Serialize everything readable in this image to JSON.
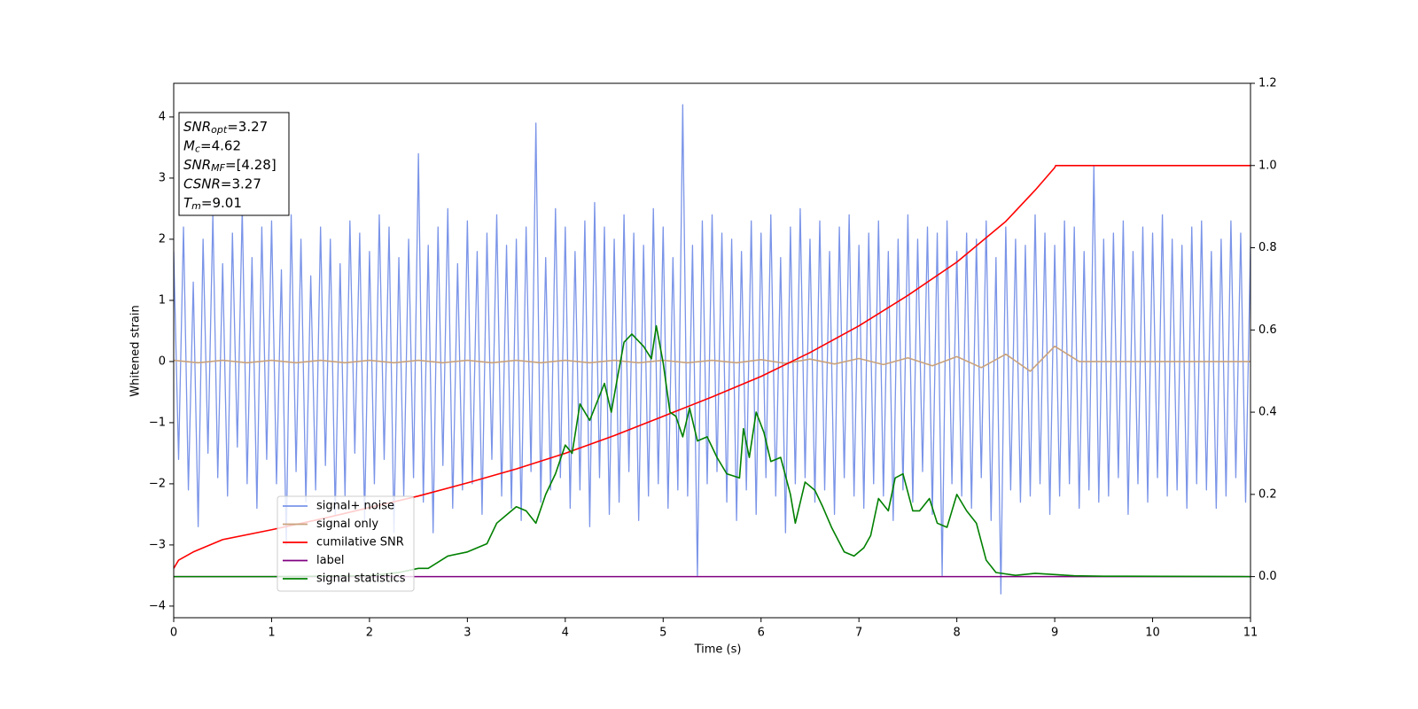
{
  "chart_data": {
    "type": "line",
    "xlabel": "Time (s)",
    "ylabel": "Whitened strain",
    "xlim": [
      0,
      11
    ],
    "xticks": [
      0,
      1,
      2,
      3,
      4,
      5,
      6,
      7,
      8,
      9,
      10,
      11
    ],
    "ylim": [
      -4.19,
      4.55
    ],
    "yticks": [
      {
        "value": -4,
        "label": "−4"
      },
      {
        "value": -3,
        "label": "−3"
      },
      {
        "value": -2,
        "label": "−2"
      },
      {
        "value": -1,
        "label": "−1"
      },
      0,
      1,
      2,
      3,
      4
    ],
    "y2lim": [
      -0.1,
      1.2
    ],
    "y2ticks": [
      {
        "value": 0,
        "label": "0.0"
      },
      0.2,
      0.4,
      0.6,
      0.8,
      {
        "value": 1,
        "label": "1.0"
      },
      1.2
    ],
    "annotation": [
      {
        "symbol": "SNR",
        "sub": "opt",
        "text": "=3.27"
      },
      {
        "symbol": "M",
        "sub": "c",
        "text": "=4.62"
      },
      {
        "symbol": "SNR",
        "sub": "MF",
        "text": "=[4.28]"
      },
      {
        "symbol": "CSNR",
        "text": "=3.27"
      },
      {
        "symbol": "T",
        "sub": "m",
        "text": "=9.01"
      }
    ],
    "series": [
      {
        "name": "signal+ noise",
        "color": "#7a94e8",
        "x": [
          0,
          0.05,
          0.1,
          0.15,
          0.2,
          0.25,
          0.3,
          0.35,
          0.4,
          0.45,
          0.5,
          0.55,
          0.6,
          0.65,
          0.7,
          0.75,
          0.8,
          0.85,
          0.9,
          0.95,
          1,
          1.05,
          1.1,
          1.15,
          1.2,
          1.25,
          1.3,
          1.35,
          1.4,
          1.45,
          1.5,
          1.55,
          1.6,
          1.65,
          1.7,
          1.75,
          1.8,
          1.85,
          1.9,
          1.95,
          2,
          2.05,
          2.1,
          2.15,
          2.2,
          2.25,
          2.3,
          2.35,
          2.4,
          2.45,
          2.5,
          2.55,
          2.6,
          2.65,
          2.7,
          2.75,
          2.8,
          2.85,
          2.9,
          2.95,
          3,
          3.05,
          3.1,
          3.15,
          3.2,
          3.25,
          3.3,
          3.35,
          3.4,
          3.45,
          3.5,
          3.55,
          3.6,
          3.65,
          3.7,
          3.75,
          3.8,
          3.85,
          3.9,
          3.95,
          4,
          4.05,
          4.1,
          4.15,
          4.2,
          4.25,
          4.3,
          4.35,
          4.4,
          4.45,
          4.5,
          4.55,
          4.6,
          4.65,
          4.7,
          4.75,
          4.8,
          4.85,
          4.9,
          4.95,
          5,
          5.05,
          5.1,
          5.15,
          5.2,
          5.25,
          5.3,
          5.35,
          5.4,
          5.45,
          5.5,
          5.55,
          5.6,
          5.65,
          5.7,
          5.75,
          5.8,
          5.85,
          5.9,
          5.95,
          6,
          6.05,
          6.1,
          6.15,
          6.2,
          6.25,
          6.3,
          6.35,
          6.4,
          6.45,
          6.5,
          6.55,
          6.6,
          6.65,
          6.7,
          6.75,
          6.8,
          6.85,
          6.9,
          6.95,
          7,
          7.05,
          7.1,
          7.15,
          7.2,
          7.25,
          7.3,
          7.35,
          7.4,
          7.45,
          7.5,
          7.55,
          7.6,
          7.65,
          7.7,
          7.75,
          7.8,
          7.85,
          7.9,
          7.95,
          8,
          8.05,
          8.1,
          8.15,
          8.2,
          8.25,
          8.3,
          8.35,
          8.4,
          8.45,
          8.5,
          8.55,
          8.6,
          8.65,
          8.7,
          8.75,
          8.8,
          8.85,
          8.9,
          8.95,
          9,
          9.05,
          9.1,
          9.15,
          9.2,
          9.25,
          9.3,
          9.35,
          9.4,
          9.45,
          9.5,
          9.55,
          9.6,
          9.65,
          9.7,
          9.75,
          9.8,
          9.85,
          9.9,
          9.95,
          10,
          10.05,
          10.1,
          10.15,
          10.2,
          10.25,
          10.3,
          10.35,
          10.4,
          10.45,
          10.5,
          10.55,
          10.6,
          10.65,
          10.7,
          10.75,
          10.8,
          10.85,
          10.9,
          10.95,
          11
        ],
        "values": [
          1.8,
          -1.6,
          2.2,
          -2.1,
          1.3,
          -2.7,
          2.0,
          -1.5,
          2.4,
          -1.9,
          1.6,
          -2.2,
          2.1,
          -1.4,
          2.5,
          -2.0,
          1.7,
          -2.4,
          2.2,
          -1.6,
          2.3,
          -2.0,
          1.5,
          -3.0,
          2.4,
          -1.8,
          2.0,
          -2.3,
          1.4,
          -2.1,
          2.2,
          -1.7,
          2.0,
          -2.5,
          1.6,
          -2.2,
          2.3,
          -1.5,
          2.1,
          -2.6,
          1.8,
          -2.0,
          2.4,
          -1.6,
          2.2,
          -2.8,
          1.7,
          -2.2,
          2.0,
          -1.9,
          3.4,
          -2.3,
          1.9,
          -2.8,
          2.2,
          -1.7,
          2.5,
          -2.4,
          1.6,
          -2.1,
          2.3,
          -2.0,
          1.8,
          -2.5,
          2.1,
          -1.6,
          2.4,
          -2.2,
          1.9,
          -2.4,
          2.0,
          -2.6,
          2.2,
          -1.8,
          3.9,
          -2.3,
          1.7,
          -2.1,
          2.5,
          -1.9,
          2.2,
          -2.4,
          1.8,
          -2.1,
          2.3,
          -2.7,
          2.6,
          -1.9,
          2.2,
          -2.5,
          2.0,
          -2.3,
          2.4,
          -1.8,
          2.1,
          -2.6,
          1.9,
          -2.2,
          2.5,
          -2.0,
          2.2,
          -2.4,
          1.7,
          -2.1,
          4.2,
          -2.2,
          1.9,
          -3.5,
          2.3,
          -2.0,
          2.4,
          -1.8,
          2.1,
          -2.3,
          2.0,
          -2.6,
          1.8,
          -2.1,
          2.3,
          -2.5,
          2.1,
          -1.9,
          2.4,
          -2.2,
          1.7,
          -2.8,
          2.2,
          -2.0,
          2.5,
          -1.9,
          2.0,
          -2.3,
          2.3,
          -2.1,
          1.8,
          -2.5,
          2.2,
          -1.9,
          2.4,
          -2.2,
          1.9,
          -2.4,
          2.1,
          -2.0,
          2.3,
          -2.2,
          1.8,
          -2.6,
          2.0,
          -2.1,
          2.4,
          -2.3,
          2.0,
          -1.8,
          2.2,
          -2.5,
          2.1,
          -3.5,
          2.3,
          -2.0,
          1.8,
          -2.2,
          2.1,
          -2.4,
          2.0,
          -1.9,
          2.3,
          -2.6,
          1.7,
          -3.8,
          2.2,
          -2.1,
          2.0,
          -2.3,
          1.9,
          -2.2,
          2.4,
          -2.0,
          2.1,
          -2.5,
          1.9,
          -2.2,
          2.3,
          -2.0,
          2.2,
          -2.4,
          1.8,
          -2.1,
          3.2,
          -2.3,
          2.0,
          -2.2,
          2.1,
          -1.9,
          2.3,
          -2.5,
          1.8,
          -2.0,
          2.2,
          -2.3,
          2.1,
          -1.9,
          2.4,
          -2.2,
          2.0,
          -2.1,
          1.9,
          -2.4,
          2.2,
          -2.0,
          2.3,
          -2.1,
          1.8,
          -2.4,
          2.0,
          -2.2,
          2.3,
          -1.9,
          2.1,
          -2.3,
          1.9
        ]
      },
      {
        "name": "signal only",
        "color": "#c9a27c",
        "x": [
          0,
          0.25,
          0.5,
          0.75,
          1,
          1.25,
          1.5,
          1.75,
          2,
          2.25,
          2.5,
          2.75,
          3,
          3.25,
          3.5,
          3.75,
          4,
          4.25,
          4.5,
          4.75,
          5,
          5.25,
          5.5,
          5.75,
          6,
          6.25,
          6.5,
          6.75,
          7,
          7.25,
          7.5,
          7.75,
          8,
          8.25,
          8.5,
          8.75,
          9,
          9.25,
          9.5,
          9.75,
          10,
          10.25,
          10.5,
          10.75,
          11
        ],
        "values": [
          0.02,
          -0.02,
          0.02,
          -0.02,
          0.02,
          -0.02,
          0.02,
          -0.02,
          0.02,
          -0.02,
          0.02,
          -0.02,
          0.02,
          -0.02,
          0.02,
          -0.02,
          0.02,
          -0.02,
          0.02,
          -0.02,
          0.02,
          -0.02,
          0.02,
          -0.02,
          0.03,
          -0.03,
          0.04,
          -0.04,
          0.05,
          -0.05,
          0.06,
          -0.07,
          0.08,
          -0.1,
          0.12,
          -0.16,
          0.25,
          0,
          0,
          0,
          0,
          0,
          0,
          0,
          0
        ]
      },
      {
        "name": "cumilative SNR",
        "color": "#ff0000",
        "axis": "y2",
        "x": [
          0,
          0.05,
          0.2,
          0.5,
          1,
          1.5,
          2,
          2.5,
          3,
          3.5,
          4,
          4.5,
          5,
          5.5,
          6,
          6.5,
          7,
          7.5,
          8,
          8.5,
          8.8,
          9,
          9.01,
          11
        ],
        "values": [
          0.02,
          0.04,
          0.06,
          0.09,
          0.114,
          0.14,
          0.168,
          0.196,
          0.228,
          0.262,
          0.3,
          0.343,
          0.39,
          0.437,
          0.487,
          0.545,
          0.61,
          0.684,
          0.765,
          0.864,
          0.94,
          0.995,
          1.0,
          1.0
        ]
      },
      {
        "name": "label",
        "color": "#800080",
        "axis": "y2",
        "x": [
          0,
          11
        ],
        "values": [
          0,
          0
        ]
      },
      {
        "name": "signal statistics",
        "color": "#008000",
        "axis": "y2",
        "x": [
          0,
          1,
          2,
          2.3,
          2.5,
          2.6,
          2.8,
          3.0,
          3.2,
          3.3,
          3.4,
          3.5,
          3.6,
          3.7,
          3.8,
          3.9,
          4.0,
          4.07,
          4.15,
          4.25,
          4.4,
          4.47,
          4.53,
          4.6,
          4.68,
          4.8,
          4.88,
          4.93,
          5.0,
          5.07,
          5.13,
          5.2,
          5.27,
          5.35,
          5.45,
          5.55,
          5.65,
          5.78,
          5.82,
          5.88,
          5.95,
          6.03,
          6.1,
          6.2,
          6.3,
          6.35,
          6.45,
          6.55,
          6.63,
          6.72,
          6.85,
          6.95,
          7.05,
          7.12,
          7.2,
          7.3,
          7.37,
          7.45,
          7.55,
          7.62,
          7.72,
          7.8,
          7.9,
          8.0,
          8.1,
          8.2,
          8.3,
          8.4,
          8.6,
          8.8,
          9.0,
          9.2,
          9.5,
          11
        ],
        "values": [
          0,
          0,
          0.002,
          0.01,
          0.02,
          0.02,
          0.05,
          0.06,
          0.08,
          0.13,
          0.15,
          0.17,
          0.16,
          0.13,
          0.2,
          0.25,
          0.32,
          0.3,
          0.42,
          0.38,
          0.47,
          0.4,
          0.48,
          0.57,
          0.59,
          0.56,
          0.53,
          0.61,
          0.52,
          0.4,
          0.39,
          0.34,
          0.41,
          0.33,
          0.34,
          0.29,
          0.25,
          0.24,
          0.36,
          0.29,
          0.4,
          0.35,
          0.28,
          0.29,
          0.2,
          0.13,
          0.23,
          0.21,
          0.17,
          0.12,
          0.06,
          0.05,
          0.07,
          0.1,
          0.19,
          0.16,
          0.24,
          0.25,
          0.16,
          0.16,
          0.19,
          0.13,
          0.12,
          0.2,
          0.16,
          0.13,
          0.04,
          0.01,
          0.003,
          0.008,
          0.005,
          0.002,
          0.001,
          0
        ]
      }
    ]
  }
}
